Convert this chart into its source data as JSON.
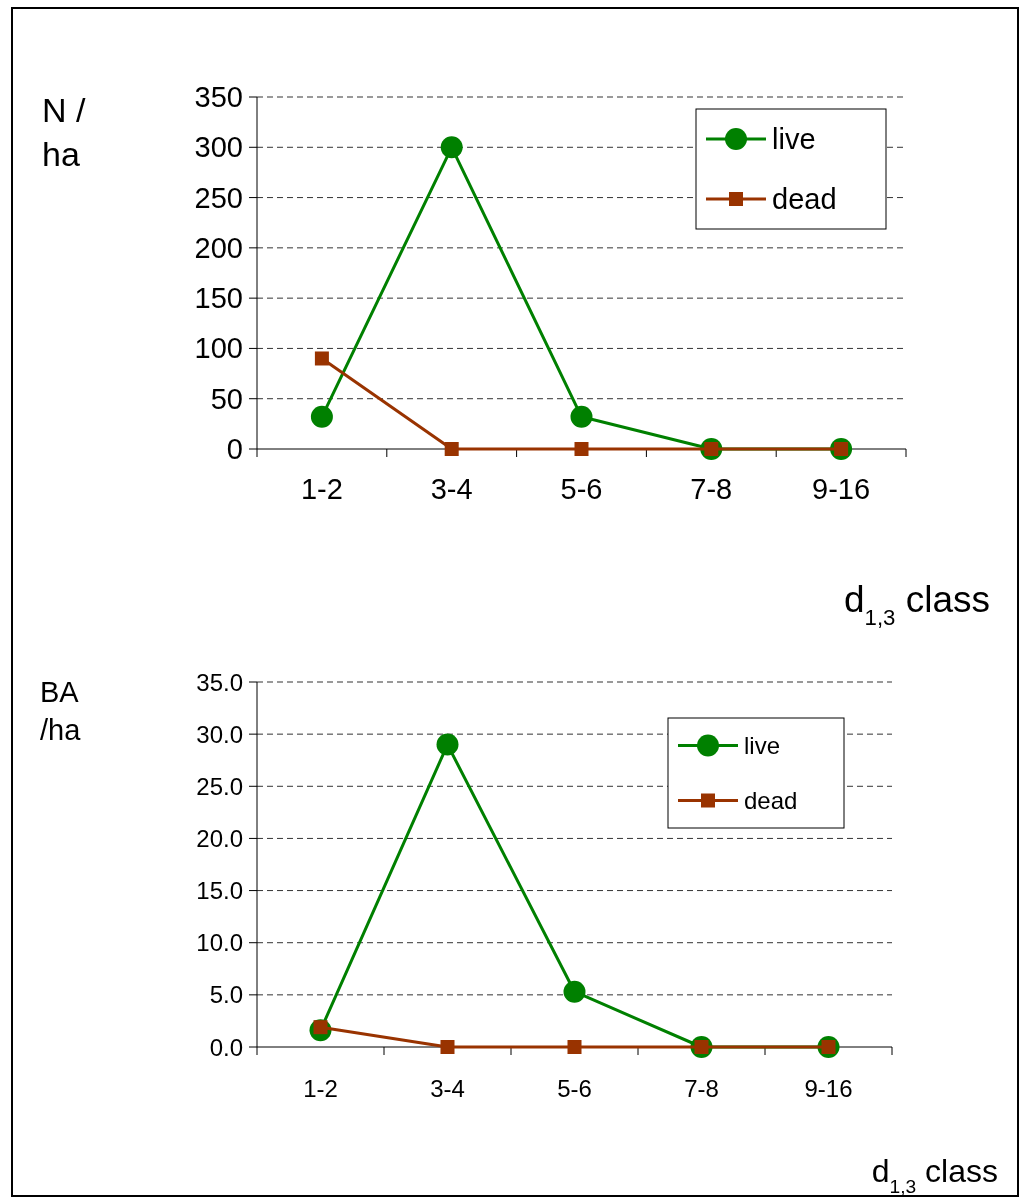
{
  "chart_data": [
    {
      "type": "line",
      "ylabel": "N /\nha",
      "xlabel": "d$_{1,3}$ class",
      "categories": [
        "1-2",
        "3-4",
        "5-6",
        "7-8",
        "9-16"
      ],
      "series": [
        {
          "name": "live",
          "color": "#008000",
          "marker": "circle",
          "values": [
            32,
            300,
            32,
            0,
            0
          ]
        },
        {
          "name": "dead",
          "color": "#993300",
          "marker": "square",
          "values": [
            90,
            0,
            0,
            0,
            0
          ]
        }
      ],
      "ylim": [
        0,
        350
      ],
      "yticks": [
        0,
        50,
        100,
        150,
        200,
        250,
        300,
        350
      ],
      "grid": "y",
      "legend": "top right"
    },
    {
      "type": "line",
      "ylabel": "BA\n/ha",
      "xlabel": "d$_{1,3}$ class",
      "categories": [
        "1-2",
        "3-4",
        "5-6",
        "7-8",
        "9-16"
      ],
      "series": [
        {
          "name": "live",
          "color": "#008000",
          "marker": "circle",
          "values": [
            1.6,
            29,
            5.3,
            0,
            0
          ]
        },
        {
          "name": "dead",
          "color": "#993300",
          "marker": "square",
          "values": [
            1.9,
            0,
            0,
            0,
            0
          ]
        }
      ],
      "ylim": [
        0,
        35
      ],
      "yticks": [
        {
          "value": 0,
          "label": "0.0"
        },
        {
          "value": 5,
          "label": "5.0"
        },
        {
          "value": 10,
          "label": "10.0"
        },
        {
          "value": 15,
          "label": "15.0"
        },
        {
          "value": 20,
          "label": "20.0"
        },
        {
          "value": 25,
          "label": "25.0"
        },
        {
          "value": 30,
          "label": "30.0"
        },
        {
          "value": 35,
          "label": "35.0"
        }
      ],
      "grid": "y",
      "legend": "top right"
    }
  ]
}
